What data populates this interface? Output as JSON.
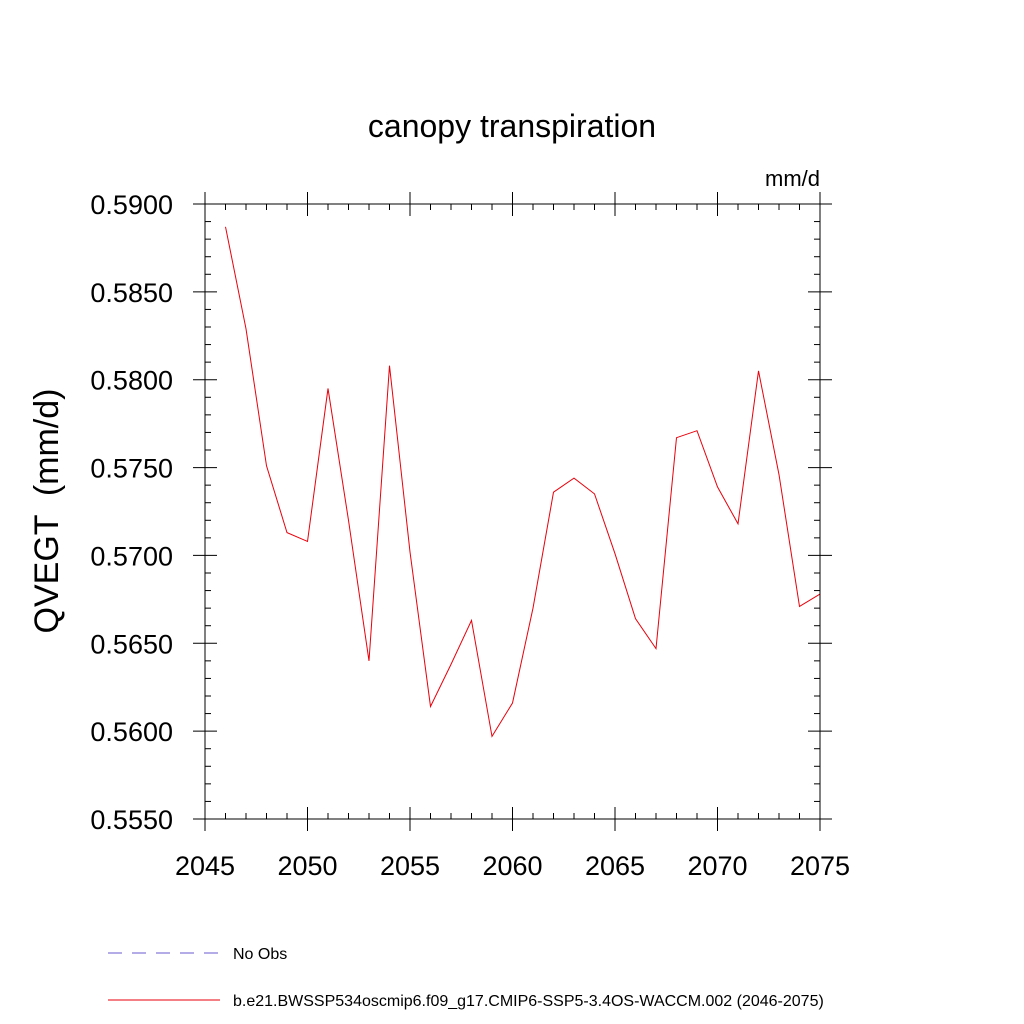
{
  "chart_data": {
    "type": "line",
    "title": "canopy transpiration",
    "units_label": "mm/d",
    "ylabel": "QVEGT  (mm/d)",
    "xlabel": "",
    "xlim": [
      2045,
      2075
    ],
    "ylim": [
      0.555,
      0.59
    ],
    "xticks": [
      2045,
      2050,
      2055,
      2060,
      2065,
      2070,
      2075
    ],
    "xtick_labels": [
      "2045",
      "2050",
      "2055",
      "2060",
      "2065",
      "2070",
      "2075"
    ],
    "yticks": [
      0.555,
      0.56,
      0.565,
      0.57,
      0.575,
      0.58,
      0.585,
      0.59
    ],
    "ytick_labels": [
      "0.5550",
      "0.5600",
      "0.5650",
      "0.5700",
      "0.5750",
      "0.5800",
      "0.5850",
      "0.5900"
    ],
    "grid": false,
    "legend_position": "bottom-left",
    "legend": [
      {
        "label": "No Obs",
        "color": "#6a5acd",
        "style": "dashed"
      },
      {
        "label": "b.e21.BWSSP534oscmip6.f09_g17.CMIP6-SSP5-3.4OS-WACCM.002 (2046-2075)",
        "color": "#e8000b",
        "style": "solid"
      }
    ],
    "series": [
      {
        "color": "#e8000b",
        "x": [
          2046,
          2047,
          2048,
          2049,
          2050,
          2051,
          2052,
          2053,
          2054,
          2055,
          2056,
          2057,
          2058,
          2059,
          2060,
          2061,
          2062,
          2063,
          2064,
          2065,
          2066,
          2067,
          2068,
          2069,
          2070,
          2071,
          2072,
          2073,
          2074,
          2075
        ],
        "y": [
          0.5887,
          0.5829,
          0.5751,
          0.5713,
          0.5708,
          0.5795,
          0.572,
          0.564,
          0.5808,
          0.5702,
          0.5614,
          0.5638,
          0.5663,
          0.5597,
          0.5616,
          0.567,
          0.5736,
          0.5744,
          0.5735,
          0.5701,
          0.5664,
          0.5647,
          0.5767,
          0.5771,
          0.5739,
          0.5718,
          0.5805,
          0.5746,
          0.5671,
          0.5678
        ]
      }
    ]
  }
}
